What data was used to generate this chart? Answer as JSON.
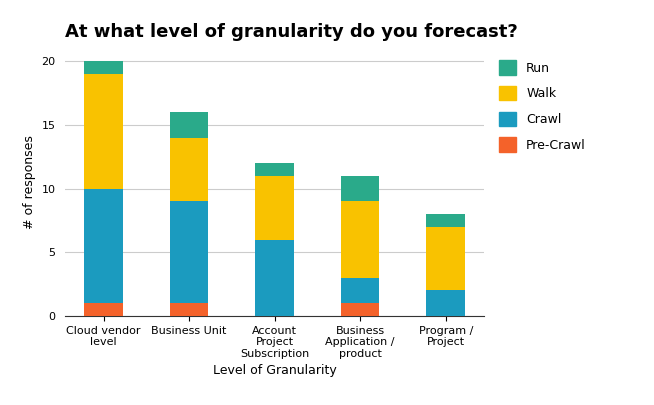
{
  "categories": [
    "Cloud vendor\nlevel",
    "Business Unit",
    "Account\nProject\nSubscription",
    "Business\nApplication /\nproduct",
    "Program /\nProject"
  ],
  "pre_crawl": [
    1,
    1,
    0,
    1,
    0
  ],
  "crawl": [
    9,
    8,
    6,
    2,
    2
  ],
  "walk": [
    9,
    5,
    5,
    6,
    5
  ],
  "run": [
    1,
    2,
    1,
    2,
    1
  ],
  "colors": {
    "pre_crawl": "#f4622a",
    "crawl": "#1b9bbf",
    "walk": "#f9c200",
    "run": "#2aaa8a"
  },
  "title": "At what level of granularity do you forecast?",
  "xlabel": "Level of Granularity",
  "ylabel": "# of responses",
  "ylim": [
    0,
    21
  ],
  "yticks": [
    0,
    5,
    10,
    15,
    20
  ],
  "title_fontsize": 13,
  "axis_label_fontsize": 9,
  "tick_fontsize": 8,
  "legend_fontsize": 9,
  "background_color": "#ffffff"
}
